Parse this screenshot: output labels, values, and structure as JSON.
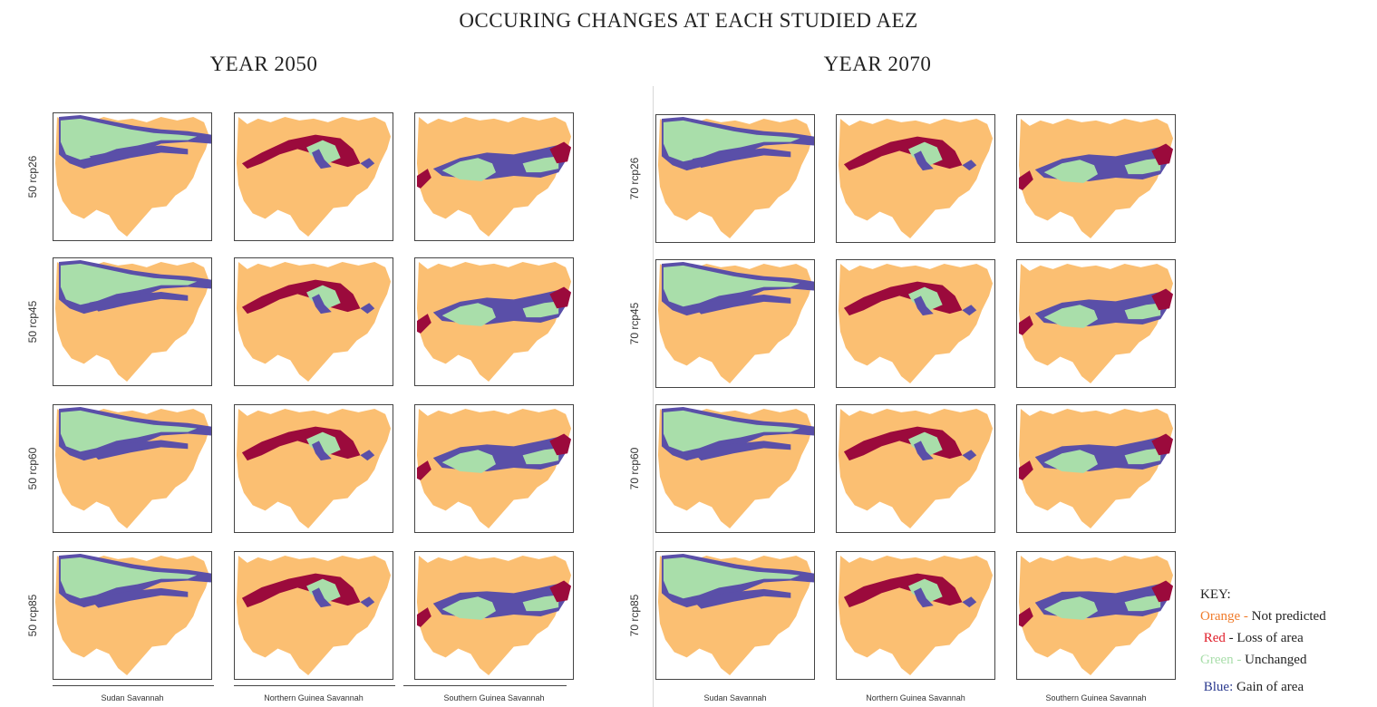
{
  "title": "OCCURING CHANGES AT EACH STUDIED AEZ",
  "years": [
    "YEAR 2050",
    "YEAR 2070"
  ],
  "row_labels_2050": [
    "50 rcp26",
    "50 rcp45",
    "50 rcp60",
    "50 rcp85"
  ],
  "row_labels_2070": [
    "70 rcp26",
    "70 rcp45",
    "70 rcp60",
    "70 rcp85"
  ],
  "columns": [
    "Sudan Savannah",
    "Northern Guinea Savannah",
    "Southern Guinea Savannah"
  ],
  "colors": {
    "not_predicted": "#fbbf72",
    "loss": "#9b0a3c",
    "unchanged": "#a9deaa",
    "gain": "#5a4fa8"
  },
  "key": {
    "title": "KEY:",
    "items": [
      {
        "color_word": "Orange",
        "sep": " - ",
        "desc": "Not predicted",
        "color": "#f07b2a"
      },
      {
        "color_word": "Red",
        "sep": " - ",
        "desc": "Loss of area",
        "color": "#e01e2a"
      },
      {
        "color_word": "Green",
        "sep": " - ",
        "desc": "Unchanged",
        "color": "#a9deaa"
      },
      {
        "color_word": "Blue:",
        "sep": " ",
        "desc": "Gain of area",
        "color": "#2b3a8f"
      }
    ]
  }
}
